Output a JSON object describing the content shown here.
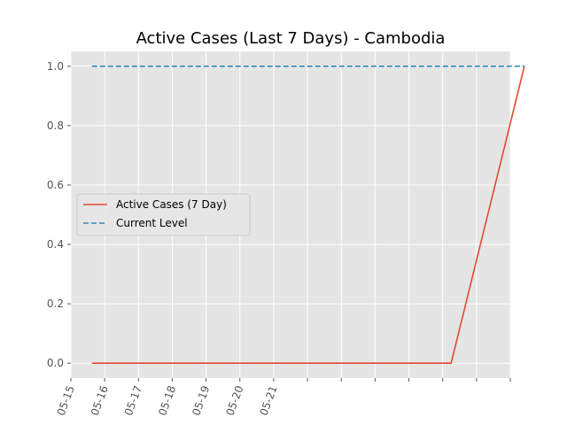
{
  "chart_data": {
    "type": "line",
    "title": "Active Cases (Last 7 Days) - Cambodia",
    "xlabel": "",
    "ylabel": "",
    "x_axis": {
      "type": "date",
      "range": [
        "2021-05-15",
        "2021-05-28"
      ],
      "ticks": [
        "2021-05-15",
        "2021-05-16",
        "2021-05-17",
        "2021-05-18",
        "2021-05-19",
        "2021-05-20",
        "2021-05-21",
        "2021-05-22",
        "2021-05-23",
        "2021-05-24",
        "2021-05-25",
        "2021-05-26",
        "2021-05-27",
        "2021-05-28"
      ],
      "tick_labels": [
        "05-15",
        "05-16",
        "05-17",
        "05-18",
        "05-19",
        "05-20",
        "05-21",
        "",
        "",
        "",
        "",
        "",
        "",
        ""
      ]
    },
    "y_axis": {
      "range": [
        -0.05,
        1.05
      ],
      "ticks": [
        0.0,
        0.2,
        0.4,
        0.6,
        0.8,
        1.0
      ],
      "tick_labels": [
        "0.0",
        "0.2",
        "0.4",
        "0.6",
        "0.8",
        "1.0"
      ]
    },
    "grid": true,
    "legend": {
      "placement": "center-left"
    },
    "series": [
      {
        "name": "Active Cases (7 Day)",
        "color": "#E24A33",
        "style": "solid",
        "x": [
          "2021-05-15T15:00",
          "2021-05-26T06:00",
          "2021-05-28T10:00"
        ],
        "y": [
          0,
          0,
          1
        ]
      },
      {
        "name": "Current Level",
        "color": "#348ABD",
        "style": "dashed",
        "x": [
          "2021-05-15T15:00",
          "2021-05-28T10:00"
        ],
        "y": [
          1,
          1
        ]
      }
    ]
  }
}
